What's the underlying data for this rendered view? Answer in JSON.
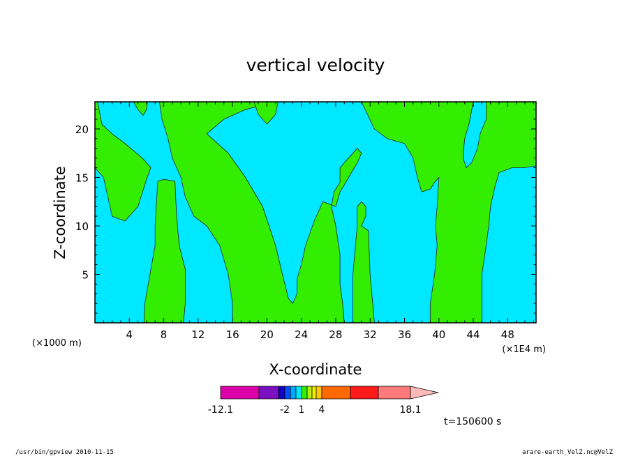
{
  "chart_data": {
    "type": "heatmap",
    "title": "vertical velocity",
    "xlabel": "X-coordinate",
    "ylabel": "Z-coordinate",
    "x_unit_left": "(×1000 m)",
    "x_unit_right": "(×1E4 m)",
    "xlim": [
      0,
      51.3
    ],
    "ylim": [
      0,
      22.8
    ],
    "xticks": [
      4,
      8,
      12,
      16,
      20,
      24,
      28,
      32,
      36,
      40,
      44,
      48
    ],
    "yticks": [
      5,
      10,
      15,
      20
    ],
    "background_level_color": "#00e8ff",
    "positive_level_color": "#33ee00",
    "regions": [
      {
        "name": "left-upper",
        "points": [
          [
            0,
            16
          ],
          [
            1,
            15
          ],
          [
            1.5,
            13
          ],
          [
            2,
            11
          ],
          [
            3.5,
            10.5
          ],
          [
            5,
            12
          ],
          [
            6,
            14.8
          ],
          [
            6.5,
            16
          ],
          [
            5.5,
            17
          ],
          [
            3.5,
            18.5
          ],
          [
            2,
            19.5
          ],
          [
            0.8,
            20.5
          ],
          [
            0.3,
            22.8
          ],
          [
            0,
            22.8
          ]
        ]
      },
      {
        "name": "top-small-left",
        "points": [
          [
            4.5,
            22.8
          ],
          [
            5,
            22
          ],
          [
            5.6,
            21.4
          ],
          [
            6,
            22
          ],
          [
            6.1,
            22.8
          ]
        ]
      },
      {
        "name": "column-8",
        "points": [
          [
            5.7,
            0
          ],
          [
            5.8,
            2
          ],
          [
            6.2,
            4
          ],
          [
            6.5,
            5.5
          ],
          [
            7,
            8
          ],
          [
            7,
            10
          ],
          [
            7.2,
            13
          ],
          [
            7.3,
            14.6
          ],
          [
            8,
            14.8
          ],
          [
            9.3,
            14.6
          ],
          [
            9.5,
            11
          ],
          [
            9.8,
            8
          ],
          [
            10.5,
            5.5
          ],
          [
            10.5,
            2
          ],
          [
            10.3,
            0
          ]
        ]
      },
      {
        "name": "main-diagonal",
        "points": [
          [
            16,
            0
          ],
          [
            16,
            2
          ],
          [
            15.5,
            5
          ],
          [
            14.5,
            8
          ],
          [
            13,
            10
          ],
          [
            11.5,
            11
          ],
          [
            10.5,
            13
          ],
          [
            10,
            15
          ],
          [
            9,
            17
          ],
          [
            8.5,
            19
          ],
          [
            7.8,
            21
          ],
          [
            7.5,
            22.8
          ],
          [
            21,
            22.8
          ],
          [
            17.5,
            22
          ],
          [
            15,
            21
          ],
          [
            13,
            19.5
          ],
          [
            15.5,
            17.5
          ],
          [
            17.5,
            15
          ],
          [
            19.5,
            12
          ],
          [
            21,
            8
          ],
          [
            21.8,
            5
          ],
          [
            22.5,
            2.5
          ],
          [
            23,
            2
          ],
          [
            23.5,
            3
          ],
          [
            23.5,
            4.5
          ],
          [
            24,
            6
          ],
          [
            24.5,
            8
          ],
          [
            25.5,
            10.5
          ],
          [
            26.5,
            12.5
          ],
          [
            28,
            12
          ],
          [
            28.5,
            13.5
          ],
          [
            29.5,
            15
          ],
          [
            30.5,
            16.5
          ],
          [
            31,
            17.5
          ],
          [
            30.5,
            18
          ],
          [
            30,
            17.5
          ],
          [
            28.5,
            16
          ],
          [
            28.5,
            14.5
          ],
          [
            27.8,
            13.5
          ],
          [
            27.5,
            12
          ],
          [
            28,
            10
          ],
          [
            28.5,
            7
          ],
          [
            28.5,
            4
          ],
          [
            28.8,
            2
          ],
          [
            29,
            0
          ]
        ]
      },
      {
        "name": "top-bump-21",
        "points": [
          [
            18.5,
            22.8
          ],
          [
            19,
            21.5
          ],
          [
            20,
            20.5
          ],
          [
            21,
            21.5
          ],
          [
            21.3,
            22.8
          ]
        ]
      },
      {
        "name": "column-31",
        "points": [
          [
            30,
            0
          ],
          [
            30,
            5
          ],
          [
            30.3,
            8
          ],
          [
            30.5,
            10
          ],
          [
            30.5,
            12
          ],
          [
            31,
            12.5
          ],
          [
            31.5,
            12
          ],
          [
            31.5,
            11
          ],
          [
            31,
            10
          ],
          [
            31.8,
            9.5
          ],
          [
            32,
            5
          ],
          [
            32.5,
            0
          ]
        ]
      },
      {
        "name": "right-block",
        "points": [
          [
            31,
            22.8
          ],
          [
            32.5,
            20
          ],
          [
            34,
            19
          ],
          [
            36,
            18.5
          ],
          [
            37,
            17
          ],
          [
            37.5,
            15
          ],
          [
            38,
            13.5
          ],
          [
            39,
            13.8
          ],
          [
            39.5,
            14.5
          ],
          [
            40,
            15
          ],
          [
            39.8,
            12
          ],
          [
            39.6,
            10
          ],
          [
            39.8,
            8
          ],
          [
            39.5,
            5
          ],
          [
            39,
            2
          ],
          [
            39,
            0
          ],
          [
            45,
            0
          ],
          [
            45,
            5
          ],
          [
            45.5,
            8
          ],
          [
            45.8,
            10
          ],
          [
            46,
            12
          ],
          [
            46.5,
            14
          ],
          [
            47,
            15.5
          ],
          [
            48.5,
            16
          ],
          [
            50,
            16
          ],
          [
            51.3,
            16.2
          ],
          [
            51.3,
            22.8
          ],
          [
            45.5,
            22.8
          ],
          [
            45.5,
            21
          ],
          [
            44.8,
            19.5
          ],
          [
            44.5,
            18
          ],
          [
            43.8,
            16.5
          ],
          [
            43.2,
            16
          ],
          [
            42.8,
            17
          ],
          [
            43,
            19
          ],
          [
            43.5,
            20.5
          ],
          [
            44,
            22.8
          ]
        ]
      }
    ],
    "colorbar": {
      "segment_colors": [
        "#dd00aa",
        "#7a10c0",
        "#1500c8",
        "#0050ff",
        "#00a8ff",
        "#00e8ff",
        "#33ee00",
        "#b8f000",
        "#f0f000",
        "#ffc800",
        "#ff6a00",
        "#ff1a1a",
        "#ff7a7a",
        "#ffb8b8"
      ],
      "tick_labels": [
        "-12.1",
        "-2",
        "1",
        "4",
        "18.1"
      ]
    },
    "time_label": "t=150600 s"
  },
  "footer": {
    "left": "/usr/bin/gpview  2010-11-15",
    "right": "arare-earth_VelZ.nc@VelZ"
  }
}
